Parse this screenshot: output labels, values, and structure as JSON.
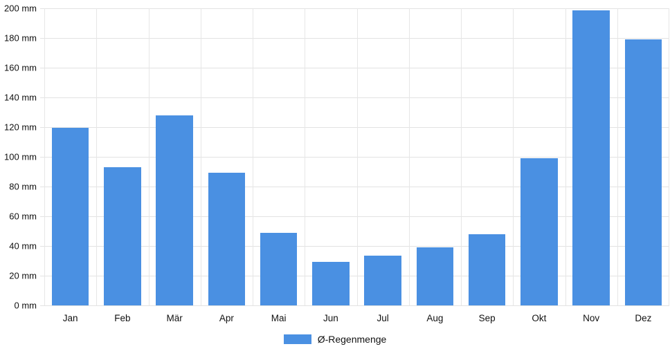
{
  "colors": {
    "bar": "#4a90e2",
    "grid": "#e3e3e3",
    "text": "#111111",
    "background": "#ffffff"
  },
  "chart_data": {
    "type": "bar",
    "title": "",
    "xlabel": "",
    "ylabel": "",
    "unit": "mm",
    "categories": [
      "Jan",
      "Feb",
      "Mär",
      "Apr",
      "Mai",
      "Jun",
      "Jul",
      "Aug",
      "Sep",
      "Okt",
      "Nov",
      "Dez"
    ],
    "series": [
      {
        "name": "Ø-Regenmenge",
        "color": "#4a90e2",
        "values": [
          119.5,
          93,
          128,
          89.5,
          49,
          29.5,
          33.5,
          39,
          48,
          99,
          198.5,
          179
        ]
      }
    ],
    "ylim": [
      0,
      200
    ],
    "ytick_step": 20,
    "ytick_labels": [
      "0 mm",
      "20 mm",
      "40 mm",
      "60 mm",
      "80 mm",
      "100 mm",
      "120 mm",
      "140 mm",
      "160 mm",
      "180 mm",
      "200 mm"
    ],
    "grid": true,
    "legend_position": "bottom"
  }
}
